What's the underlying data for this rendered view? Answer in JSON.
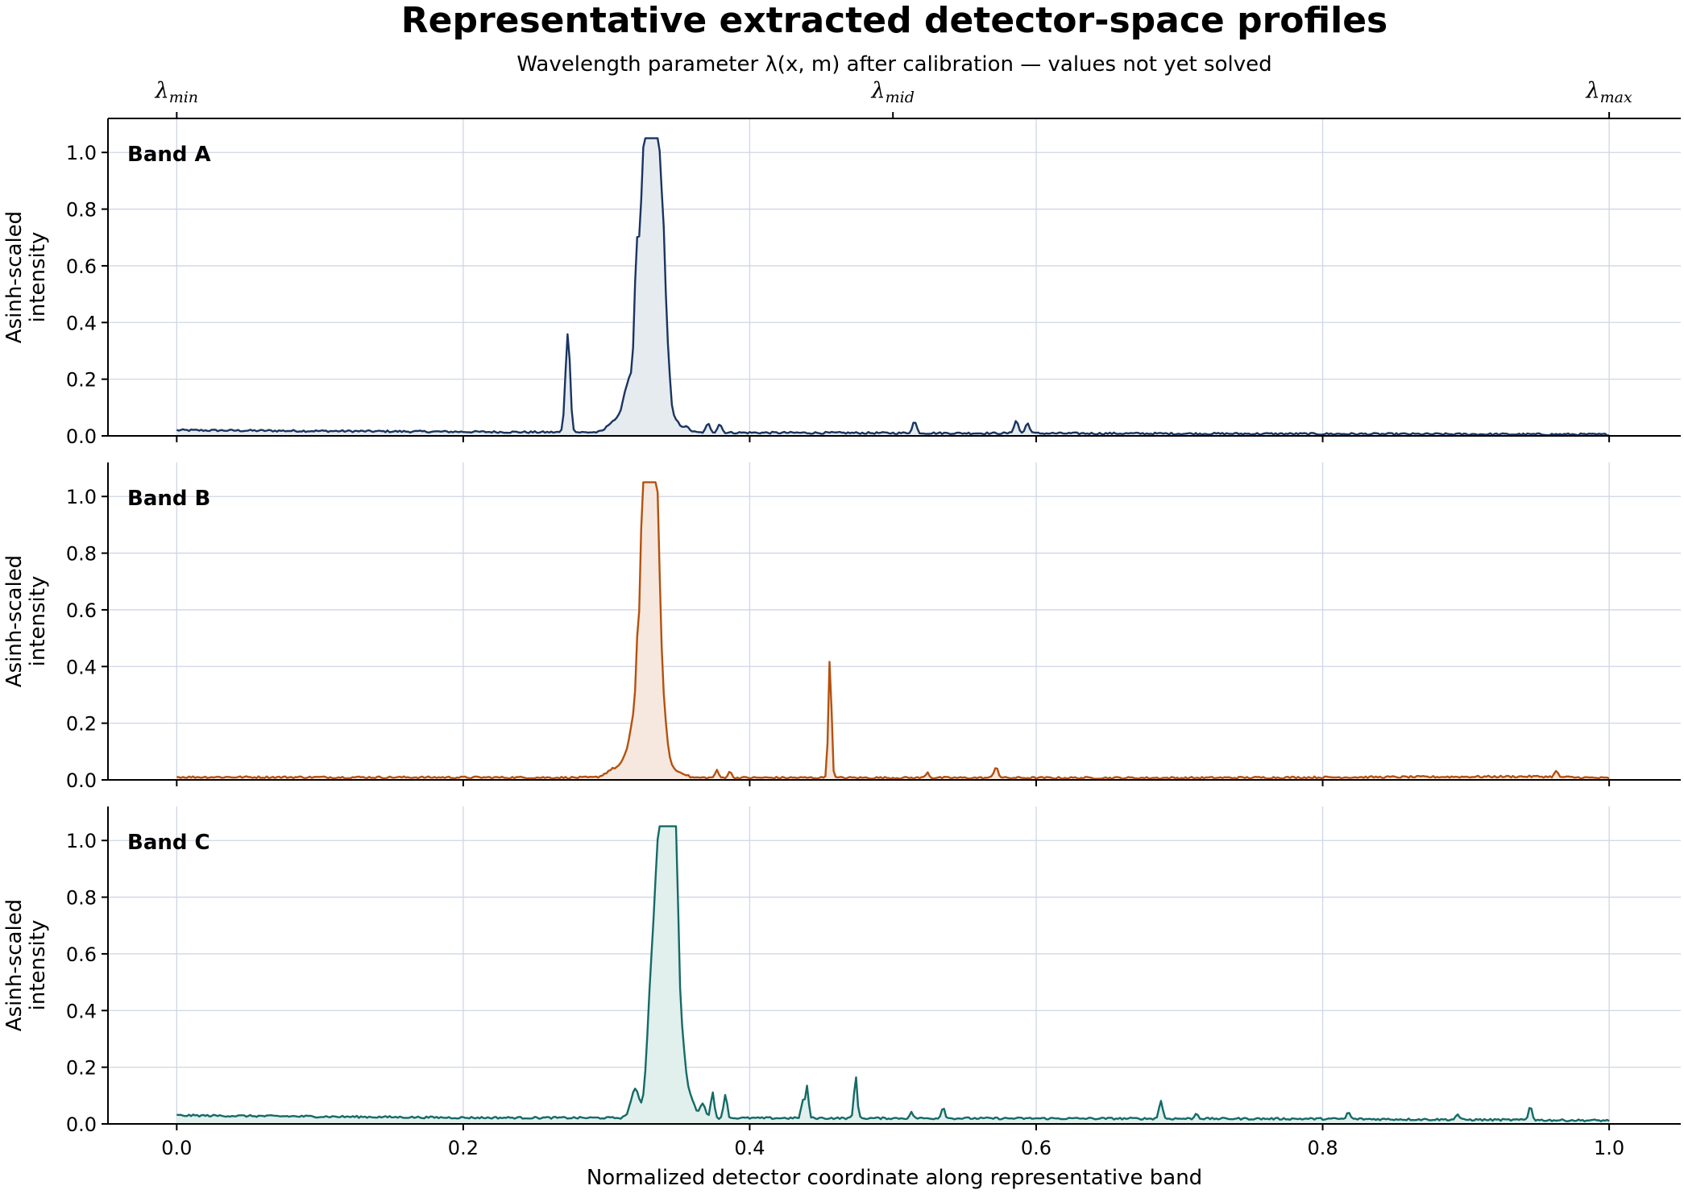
{
  "chart_data": {
    "type": "line",
    "title": "Representative extracted detector-space profiles",
    "top_axis_label": "Wavelength parameter λ(x, m) after calibration — values not yet solved",
    "top_ticks": [
      {
        "x": 0.0,
        "base": "λ",
        "sub": "min"
      },
      {
        "x": 0.5,
        "base": "λ",
        "sub": "mid"
      },
      {
        "x": 1.0,
        "base": "λ",
        "sub": "max"
      }
    ],
    "xlabel": "Normalized detector coordinate along representative band",
    "ylabel_lines": [
      "Asinh-scaled",
      "intensity"
    ],
    "xlim": [
      -0.048,
      1.05
    ],
    "ylim": [
      0,
      1.12
    ],
    "x_ticks": [
      "0.0",
      "0.2",
      "0.4",
      "0.6",
      "0.8",
      "1.0"
    ],
    "y_ticks": [
      "0.0",
      "0.2",
      "0.4",
      "0.6",
      "0.8",
      "1.0"
    ],
    "grid": true,
    "panels": [
      {
        "label": "Band A",
        "color": "#1a3560",
        "fill": "#e6ebf0",
        "baseline": [
          [
            0.0,
            0.02
          ],
          [
            0.25,
            0.013
          ],
          [
            0.5,
            0.01
          ],
          [
            1.0,
            0.005
          ]
        ],
        "peaks": [
          {
            "x": 0.273,
            "h": 0.35,
            "w": 0.0016
          },
          {
            "x": 0.305,
            "h": 0.04,
            "w": 0.004
          },
          {
            "x": 0.313,
            "h": 0.08,
            "w": 0.003
          },
          {
            "x": 0.319,
            "h": 0.19,
            "w": 0.004
          },
          {
            "x": 0.321,
            "h": 0.37,
            "w": 0.0014
          },
          {
            "x": 0.325,
            "h": 0.5,
            "w": 0.0022
          },
          {
            "x": 0.33,
            "h": 0.62,
            "w": 0.0035
          },
          {
            "x": 0.332,
            "h": 1.05,
            "w": 0.0034
          },
          {
            "x": 0.337,
            "h": 0.52,
            "w": 0.0025
          },
          {
            "x": 0.34,
            "h": 0.36,
            "w": 0.0015
          },
          {
            "x": 0.343,
            "h": 0.2,
            "w": 0.0016
          },
          {
            "x": 0.347,
            "h": 0.05,
            "w": 0.003
          },
          {
            "x": 0.355,
            "h": 0.02,
            "w": 0.003
          },
          {
            "x": 0.371,
            "h": 0.03,
            "w": 0.0015
          },
          {
            "x": 0.379,
            "h": 0.03,
            "w": 0.0015
          },
          {
            "x": 0.515,
            "h": 0.04,
            "w": 0.0015
          },
          {
            "x": 0.586,
            "h": 0.045,
            "w": 0.0015
          },
          {
            "x": 0.594,
            "h": 0.035,
            "w": 0.0015
          }
        ]
      },
      {
        "label": "Band B",
        "color": "#b5510f",
        "fill": "#f6e8de",
        "baseline": [
          [
            0.0,
            0.01
          ],
          [
            0.3,
            0.008
          ],
          [
            0.7,
            0.007
          ],
          [
            0.95,
            0.012
          ],
          [
            1.0,
            0.006
          ]
        ],
        "peaks": [
          {
            "x": 0.305,
            "h": 0.03,
            "w": 0.005
          },
          {
            "x": 0.315,
            "h": 0.07,
            "w": 0.004
          },
          {
            "x": 0.32,
            "h": 0.18,
            "w": 0.003
          },
          {
            "x": 0.322,
            "h": 0.25,
            "w": 0.0012
          },
          {
            "x": 0.326,
            "h": 0.78,
            "w": 0.0014
          },
          {
            "x": 0.329,
            "h": 1.05,
            "w": 0.0034
          },
          {
            "x": 0.333,
            "h": 0.82,
            "w": 0.0016
          },
          {
            "x": 0.336,
            "h": 0.62,
            "w": 0.002
          },
          {
            "x": 0.34,
            "h": 0.2,
            "w": 0.0025
          },
          {
            "x": 0.346,
            "h": 0.03,
            "w": 0.003
          },
          {
            "x": 0.353,
            "h": 0.015,
            "w": 0.003
          },
          {
            "x": 0.377,
            "h": 0.025,
            "w": 0.0012
          },
          {
            "x": 0.386,
            "h": 0.022,
            "w": 0.0012
          },
          {
            "x": 0.456,
            "h": 0.42,
            "w": 0.0011
          },
          {
            "x": 0.524,
            "h": 0.02,
            "w": 0.0012
          },
          {
            "x": 0.572,
            "h": 0.04,
            "w": 0.0014
          },
          {
            "x": 0.963,
            "h": 0.02,
            "w": 0.0012
          }
        ]
      },
      {
        "label": "Band C",
        "color": "#146b66",
        "fill": "#e1efed",
        "baseline": [
          [
            0.0,
            0.03
          ],
          [
            0.2,
            0.022
          ],
          [
            0.5,
            0.02
          ],
          [
            0.8,
            0.018
          ],
          [
            1.0,
            0.012
          ]
        ],
        "peaks": [
          {
            "x": 0.32,
            "h": 0.1,
            "w": 0.003
          },
          {
            "x": 0.33,
            "h": 0.25,
            "w": 0.0025
          },
          {
            "x": 0.334,
            "h": 0.42,
            "w": 0.003
          },
          {
            "x": 0.338,
            "h": 0.8,
            "w": 0.003
          },
          {
            "x": 0.341,
            "h": 0.91,
            "w": 0.0014
          },
          {
            "x": 0.344,
            "h": 1.05,
            "w": 0.0026
          },
          {
            "x": 0.348,
            "h": 0.85,
            "w": 0.0018
          },
          {
            "x": 0.352,
            "h": 0.3,
            "w": 0.0025
          },
          {
            "x": 0.358,
            "h": 0.08,
            "w": 0.003
          },
          {
            "x": 0.367,
            "h": 0.05,
            "w": 0.002
          },
          {
            "x": 0.374,
            "h": 0.09,
            "w": 0.0012
          },
          {
            "x": 0.383,
            "h": 0.085,
            "w": 0.0012
          },
          {
            "x": 0.437,
            "h": 0.06,
            "w": 0.0011
          },
          {
            "x": 0.44,
            "h": 0.11,
            "w": 0.0011
          },
          {
            "x": 0.474,
            "h": 0.15,
            "w": 0.0011
          },
          {
            "x": 0.513,
            "h": 0.02,
            "w": 0.0012
          },
          {
            "x": 0.535,
            "h": 0.04,
            "w": 0.0012
          },
          {
            "x": 0.687,
            "h": 0.065,
            "w": 0.0012
          },
          {
            "x": 0.712,
            "h": 0.02,
            "w": 0.0011
          },
          {
            "x": 0.818,
            "h": 0.025,
            "w": 0.0011
          },
          {
            "x": 0.894,
            "h": 0.02,
            "w": 0.0011
          },
          {
            "x": 0.945,
            "h": 0.05,
            "w": 0.0012
          }
        ]
      }
    ]
  }
}
